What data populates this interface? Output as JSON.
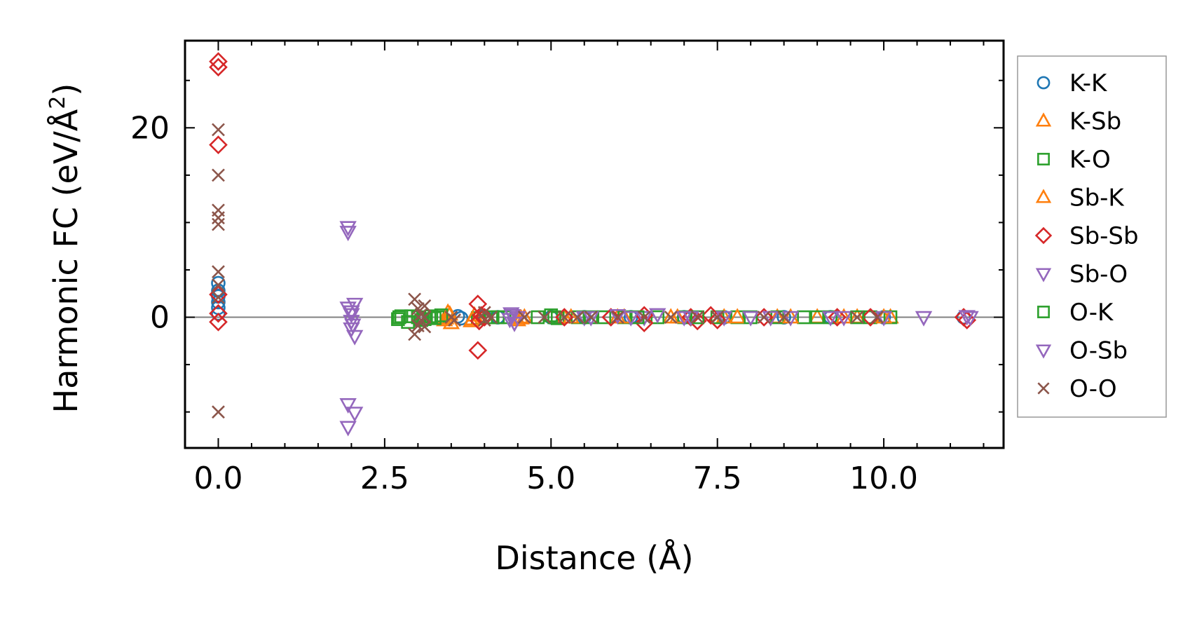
{
  "chart_data": {
    "type": "scatter",
    "xlabel": "Distance (Å)",
    "ylabel": "Harmonic FC (eV/Å",
    "ylabel_superscript": "2",
    "ylabel_suffix": ")",
    "xlim": [
      -0.5,
      11.8
    ],
    "ylim": [
      -13.8,
      29.2
    ],
    "xticks": [
      0.0,
      2.5,
      5.0,
      7.5,
      10.0
    ],
    "xtick_labels": [
      "0.0",
      "2.5",
      "5.0",
      "7.5",
      "10.0"
    ],
    "yticks": [
      0,
      20
    ],
    "ytick_labels": [
      "0",
      "20"
    ],
    "zero_line": true,
    "legend_position": "outside-right",
    "series": [
      {
        "name": "K-K",
        "marker": "circle",
        "color": "#1f77b4",
        "points": [
          [
            0,
            3.6
          ],
          [
            0,
            2.8
          ],
          [
            0,
            2.2
          ],
          [
            0,
            1.6
          ],
          [
            0,
            1.0
          ],
          [
            0,
            0.4
          ],
          [
            3.6,
            0.1
          ],
          [
            3.65,
            -0.1
          ],
          [
            4.0,
            0.1
          ],
          [
            4.2,
            0.0
          ],
          [
            5.0,
            0.0
          ],
          [
            5.5,
            0.0
          ],
          [
            6.2,
            0.0
          ],
          [
            7.0,
            0.0
          ],
          [
            7.6,
            0.0
          ],
          [
            8.5,
            0.0
          ],
          [
            9.2,
            0.0
          ],
          [
            10.0,
            0.0
          ],
          [
            11.2,
            0.0
          ]
        ]
      },
      {
        "name": "K-Sb",
        "marker": "triangle-up",
        "color": "#ff7f0e",
        "points": [
          [
            3.4,
            -0.3
          ],
          [
            3.45,
            0.5
          ],
          [
            3.5,
            -0.6
          ],
          [
            3.8,
            -0.4
          ],
          [
            3.85,
            0.2
          ],
          [
            4.5,
            -0.3
          ],
          [
            4.6,
            0.0
          ],
          [
            5.2,
            0.0
          ],
          [
            6.0,
            0.0
          ],
          [
            6.8,
            0.0
          ],
          [
            7.6,
            0.0
          ],
          [
            8.4,
            0.0
          ],
          [
            9.0,
            0.0
          ],
          [
            9.6,
            0.0
          ],
          [
            10.1,
            0.0
          ]
        ]
      },
      {
        "name": "K-O",
        "marker": "square",
        "color": "#2ca02c",
        "points": [
          [
            2.7,
            -0.2
          ],
          [
            2.75,
            0.1
          ],
          [
            2.85,
            -0.5
          ],
          [
            3.0,
            0.0
          ],
          [
            3.1,
            -0.2
          ],
          [
            3.2,
            0.1
          ],
          [
            3.3,
            0.0
          ],
          [
            3.9,
            -0.1
          ],
          [
            4.1,
            0.0
          ],
          [
            4.3,
            0.0
          ],
          [
            4.8,
            0.0
          ],
          [
            5.0,
            0.2
          ],
          [
            5.1,
            -0.1
          ],
          [
            5.4,
            0.0
          ],
          [
            5.8,
            0.0
          ],
          [
            6.1,
            0.0
          ],
          [
            6.6,
            0.0
          ],
          [
            7.0,
            0.0
          ],
          [
            7.5,
            0.0
          ],
          [
            7.8,
            0.0
          ],
          [
            8.4,
            0.0
          ],
          [
            8.8,
            0.0
          ],
          [
            9.2,
            0.0
          ],
          [
            9.8,
            0.0
          ],
          [
            10.1,
            0.0
          ]
        ]
      },
      {
        "name": "Sb-K",
        "marker": "triangle-up",
        "color": "#ff7f0e",
        "points": [
          [
            3.42,
            -0.1
          ],
          [
            3.48,
            0.3
          ],
          [
            3.82,
            -0.2
          ],
          [
            4.55,
            -0.1
          ],
          [
            5.3,
            0.0
          ],
          [
            6.1,
            0.0
          ],
          [
            6.9,
            0.0
          ],
          [
            7.8,
            0.0
          ],
          [
            8.6,
            0.0
          ],
          [
            9.4,
            0.0
          ],
          [
            10.0,
            0.0
          ]
        ]
      },
      {
        "name": "Sb-Sb",
        "marker": "diamond",
        "color": "#d62728",
        "points": [
          [
            0,
            27.0
          ],
          [
            0,
            26.4
          ],
          [
            0,
            18.2
          ],
          [
            0,
            2.4
          ],
          [
            0,
            0.4
          ],
          [
            0,
            -0.5
          ],
          [
            3.9,
            1.4
          ],
          [
            3.9,
            -3.5
          ],
          [
            3.92,
            -0.4
          ],
          [
            3.95,
            0.2
          ],
          [
            4.0,
            0.0
          ],
          [
            5.2,
            0.0
          ],
          [
            5.9,
            0.0
          ],
          [
            6.4,
            0.2
          ],
          [
            6.4,
            -0.6
          ],
          [
            7.1,
            0.0
          ],
          [
            7.2,
            -0.4
          ],
          [
            7.4,
            0.2
          ],
          [
            7.5,
            -0.3
          ],
          [
            8.2,
            0.0
          ],
          [
            9.3,
            0.0
          ],
          [
            9.8,
            0.0
          ],
          [
            11.2,
            0.0
          ],
          [
            11.25,
            -0.3
          ]
        ]
      },
      {
        "name": "Sb-O",
        "marker": "triangle-down",
        "color": "#9467bd",
        "points": [
          [
            1.95,
            9.5
          ],
          [
            1.95,
            9.0
          ],
          [
            1.95,
            1.0
          ],
          [
            2.0,
            0.3
          ],
          [
            2.0,
            -0.4
          ],
          [
            2.0,
            -1.2
          ],
          [
            2.05,
            -2.0
          ],
          [
            2.05,
            1.4
          ],
          [
            4.4,
            0.4
          ],
          [
            4.45,
            -0.6
          ],
          [
            4.5,
            0.0
          ],
          [
            5.5,
            0.0
          ],
          [
            6.0,
            0.2
          ],
          [
            6.4,
            0.0
          ],
          [
            6.6,
            0.3
          ],
          [
            7.0,
            0.0
          ],
          [
            7.6,
            0.0
          ],
          [
            8.3,
            0.0
          ],
          [
            8.6,
            0.0
          ],
          [
            9.4,
            0.0
          ],
          [
            10.6,
            0.0
          ],
          [
            11.3,
            0.0
          ]
        ]
      },
      {
        "name": "O-K",
        "marker": "square",
        "color": "#2ca02c",
        "points": [
          [
            2.72,
            0.0
          ],
          [
            2.9,
            0.1
          ],
          [
            3.05,
            -0.3
          ],
          [
            3.25,
            -0.1
          ],
          [
            3.35,
            0.2
          ],
          [
            4.2,
            0.0
          ],
          [
            5.05,
            0.0
          ],
          [
            5.6,
            0.0
          ],
          [
            6.3,
            0.0
          ],
          [
            7.2,
            0.0
          ],
          [
            8.0,
            0.0
          ],
          [
            9.0,
            0.0
          ],
          [
            9.6,
            0.0
          ]
        ]
      },
      {
        "name": "O-Sb",
        "marker": "triangle-down",
        "color": "#9467bd",
        "points": [
          [
            1.95,
            -9.2
          ],
          [
            1.95,
            -11.6
          ],
          [
            2.05,
            -10.1
          ],
          [
            2.0,
            0.6
          ],
          [
            2.02,
            -0.8
          ],
          [
            4.38,
            -0.2
          ],
          [
            4.42,
            0.2
          ],
          [
            5.6,
            0.0
          ],
          [
            6.2,
            0.0
          ],
          [
            7.1,
            0.0
          ],
          [
            8.0,
            0.0
          ],
          [
            9.2,
            0.0
          ],
          [
            10.0,
            0.0
          ],
          [
            11.25,
            0.1
          ]
        ]
      },
      {
        "name": "O-O",
        "marker": "x",
        "color": "#8c564b",
        "points": [
          [
            0,
            19.8
          ],
          [
            0,
            15.0
          ],
          [
            0,
            11.3
          ],
          [
            0,
            10.5
          ],
          [
            0,
            9.8
          ],
          [
            0,
            4.8
          ],
          [
            0,
            3.4
          ],
          [
            0,
            2.1
          ],
          [
            0,
            -10.0
          ],
          [
            2.95,
            1.9
          ],
          [
            2.95,
            -1.8
          ],
          [
            3.0,
            0.9
          ],
          [
            3.0,
            -0.9
          ],
          [
            3.05,
            0.3
          ],
          [
            3.05,
            -0.3
          ],
          [
            3.1,
            1.2
          ],
          [
            3.1,
            -1.0
          ],
          [
            3.1,
            0.0
          ],
          [
            3.5,
            0.0
          ],
          [
            3.55,
            -0.3
          ],
          [
            4.0,
            0.5
          ],
          [
            4.0,
            -0.3
          ],
          [
            4.1,
            0.0
          ],
          [
            4.6,
            0.0
          ],
          [
            4.9,
            0.0
          ],
          [
            5.2,
            0.0
          ],
          [
            5.4,
            0.0
          ],
          [
            5.6,
            0.0
          ],
          [
            6.0,
            0.0
          ],
          [
            6.4,
            0.0
          ],
          [
            6.8,
            0.0
          ],
          [
            7.2,
            0.0
          ],
          [
            7.5,
            0.0
          ],
          [
            8.2,
            0.0
          ],
          [
            8.5,
            0.0
          ],
          [
            9.6,
            0.0
          ],
          [
            9.9,
            0.0
          ]
        ]
      }
    ]
  }
}
